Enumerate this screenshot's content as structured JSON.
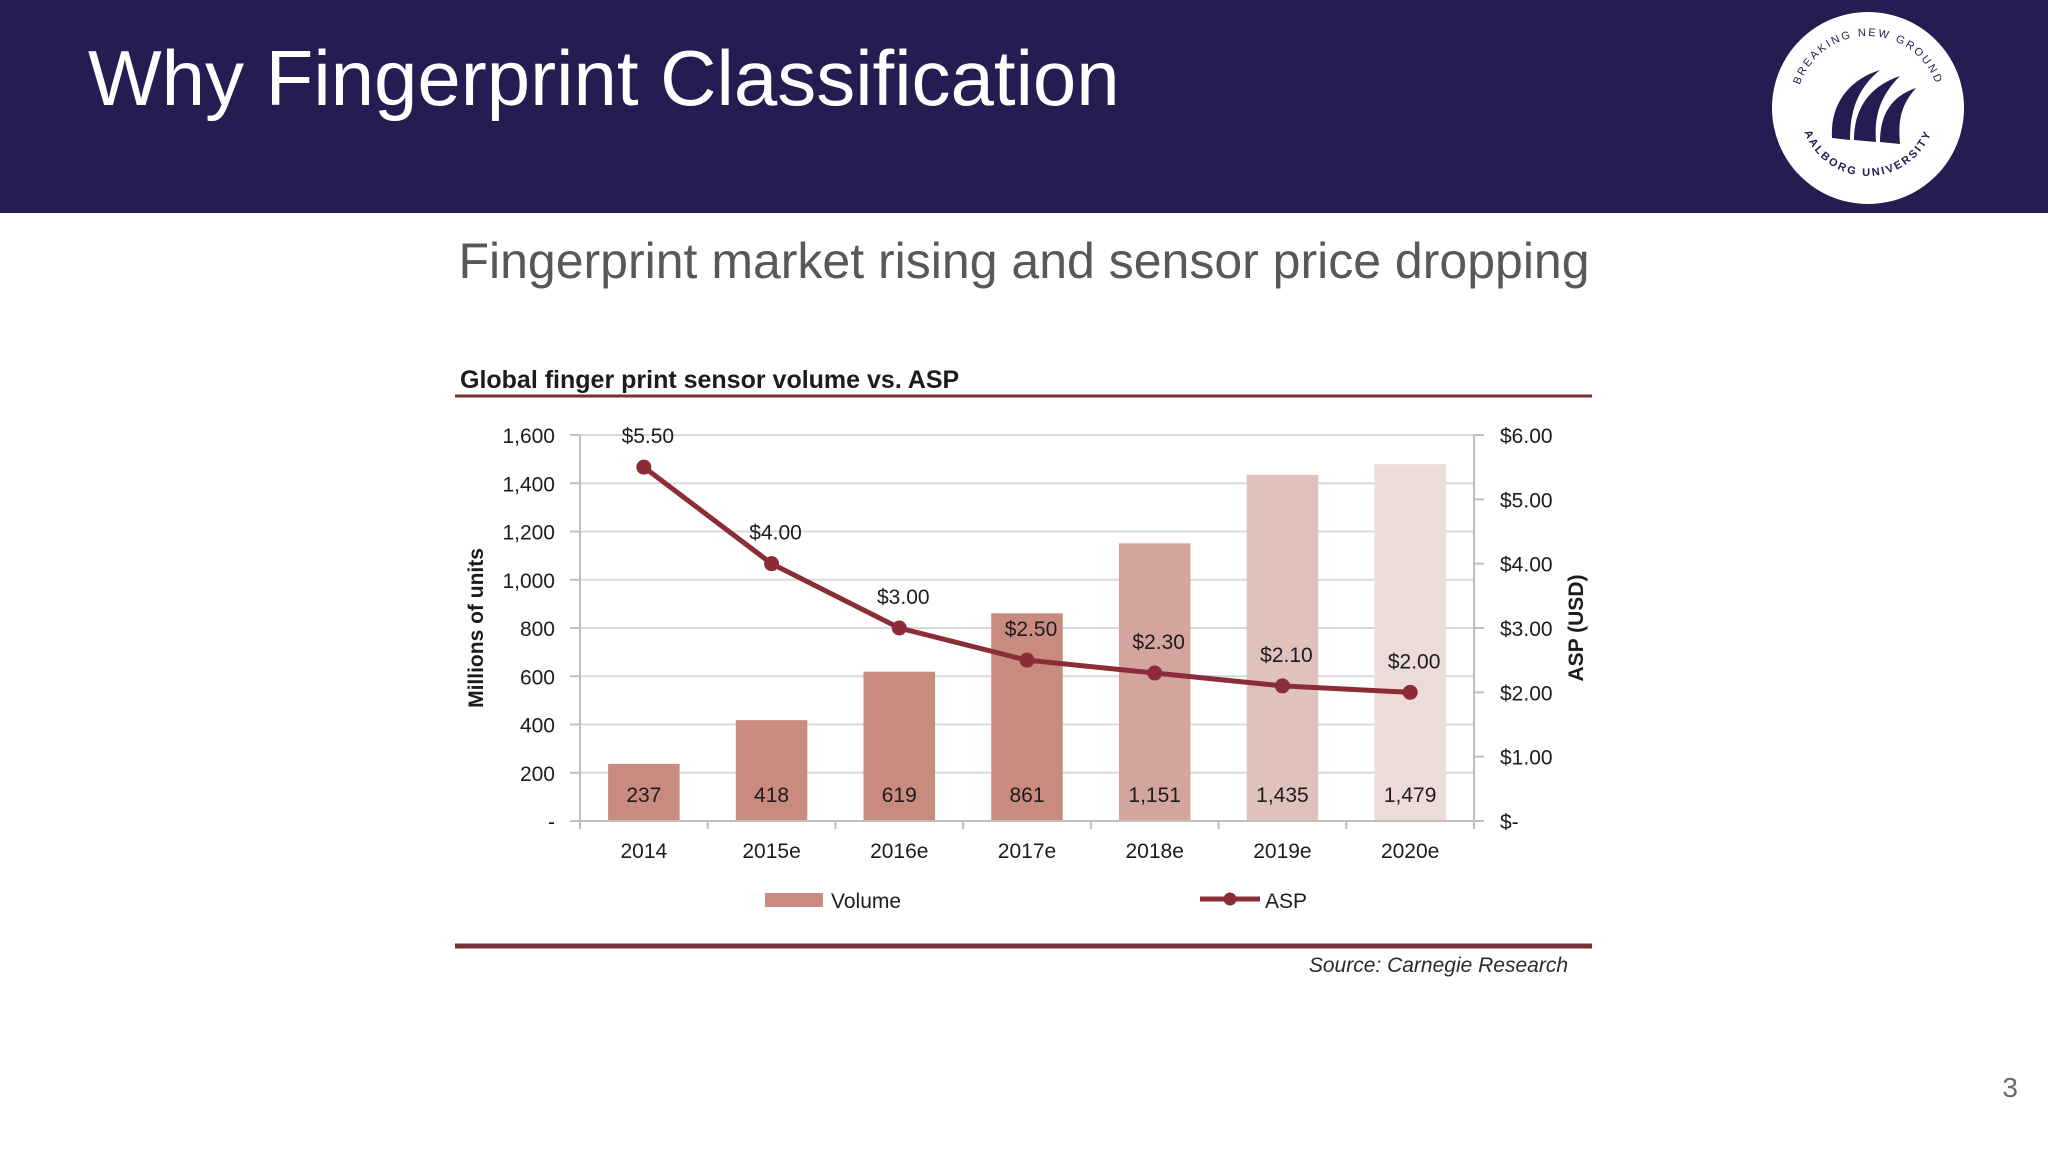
{
  "slide": {
    "title": "Why Fingerprint Classification",
    "subtitle": "Fingerprint market rising and sensor price dropping",
    "page_number": "3"
  },
  "logo": {
    "text_top": "BREAKING NEW GROUND",
    "text_bottom": "AALBORG UNIVERSITY",
    "icon": "aalborg-university-logo"
  },
  "colors": {
    "header_bg": "#231d52",
    "bar_colors": [
      "#c98b80",
      "#c98b80",
      "#c98b80",
      "#c98b80",
      "#d4a59d",
      "#e0c2bc",
      "#ecdbd8"
    ],
    "line_color": "#8b2c36",
    "rule_color": "#7a2e36"
  },
  "chart_data": {
    "type": "bar",
    "title": "Global finger print sensor volume vs. ASP",
    "categories": [
      "2014",
      "2015e",
      "2016e",
      "2017e",
      "2018e",
      "2019e",
      "2020e"
    ],
    "series": [
      {
        "name": "Volume",
        "type": "bar",
        "axis": "left",
        "values": [
          237,
          418,
          619,
          861,
          1151,
          1435,
          1479
        ],
        "labels": [
          "237",
          "418",
          "619",
          "861",
          "1,151",
          "1,435",
          "1,479"
        ]
      },
      {
        "name": "ASP",
        "type": "line",
        "axis": "right",
        "values": [
          5.5,
          4.0,
          3.0,
          2.5,
          2.3,
          2.1,
          2.0
        ],
        "labels": [
          "$5.50",
          "$4.00",
          "$3.00",
          "$2.50",
          "$2.30",
          "$2.10",
          "$2.00"
        ]
      }
    ],
    "ylabel": "Millions of units",
    "y2label": "ASP (USD)",
    "ylim": [
      0,
      1600
    ],
    "y2lim": [
      0,
      6
    ],
    "yticks": [
      "-",
      "200",
      "400",
      "600",
      "800",
      "1,000",
      "1,200",
      "1,400",
      "1,600"
    ],
    "y2ticks": [
      "$-",
      "$1.00",
      "$2.00",
      "$3.00",
      "$4.00",
      "$5.00",
      "$6.00"
    ],
    "grid": true,
    "legend": "bottom",
    "source": "Source: Carnegie Research"
  }
}
